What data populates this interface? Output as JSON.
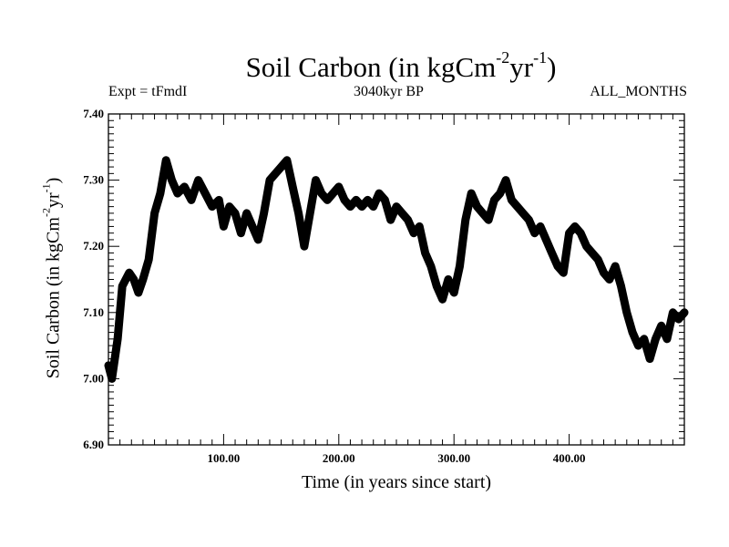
{
  "chart_data": {
    "type": "line",
    "title": "Soil Carbon (in kgCm",
    "title_sup1": "-2",
    "title_mid": "yr",
    "title_sup2": "-1",
    "title_end": ")",
    "left_subtitle": "Expt = tFmdI",
    "center_subtitle": "3040kyr BP",
    "right_subtitle": "ALL_MONTHS",
    "xlabel": "Time (in years since start)",
    "ylabel_parts": [
      "Soil Carbon (in kgCm",
      "-2",
      "yr",
      "-1",
      ")"
    ],
    "xlim": [
      0,
      500
    ],
    "ylim": [
      6.9,
      7.4
    ],
    "xticks": [
      100,
      200,
      300,
      400
    ],
    "xtick_labels": [
      "100.00",
      "200.00",
      "300.00",
      "400.00"
    ],
    "yticks": [
      6.9,
      7.0,
      7.1,
      7.2,
      7.3,
      7.4
    ],
    "ytick_labels": [
      "6.90",
      "7.00",
      "7.10",
      "7.20",
      "7.30",
      "7.40"
    ],
    "line_color": "#000000",
    "series": [
      {
        "name": "Soil Carbon",
        "x": [
          0,
          3,
          8,
          12,
          18,
          22,
          26,
          30,
          35,
          40,
          45,
          50,
          55,
          60,
          66,
          72,
          78,
          84,
          90,
          96,
          100,
          105,
          110,
          115,
          120,
          125,
          130,
          135,
          140,
          145,
          150,
          155,
          160,
          165,
          170,
          175,
          180,
          185,
          190,
          195,
          200,
          205,
          210,
          215,
          220,
          225,
          230,
          235,
          240,
          245,
          250,
          255,
          260,
          265,
          270,
          275,
          280,
          285,
          290,
          295,
          300,
          305,
          310,
          315,
          320,
          325,
          330,
          335,
          340,
          345,
          350,
          355,
          360,
          365,
          370,
          375,
          380,
          385,
          390,
          395,
          400,
          405,
          410,
          415,
          420,
          425,
          430,
          435,
          440,
          445,
          450,
          455,
          460,
          465,
          470,
          475,
          480,
          485,
          490,
          495,
          500
        ],
        "values": [
          7.02,
          7.0,
          7.06,
          7.14,
          7.16,
          7.15,
          7.13,
          7.15,
          7.18,
          7.25,
          7.28,
          7.33,
          7.3,
          7.28,
          7.29,
          7.27,
          7.3,
          7.28,
          7.26,
          7.27,
          7.23,
          7.26,
          7.25,
          7.22,
          7.25,
          7.23,
          7.21,
          7.25,
          7.3,
          7.31,
          7.32,
          7.33,
          7.29,
          7.25,
          7.2,
          7.25,
          7.3,
          7.28,
          7.27,
          7.28,
          7.29,
          7.27,
          7.26,
          7.27,
          7.26,
          7.27,
          7.26,
          7.28,
          7.27,
          7.24,
          7.26,
          7.25,
          7.24,
          7.22,
          7.23,
          7.19,
          7.17,
          7.14,
          7.12,
          7.15,
          7.13,
          7.17,
          7.24,
          7.28,
          7.26,
          7.25,
          7.24,
          7.27,
          7.28,
          7.3,
          7.27,
          7.26,
          7.25,
          7.24,
          7.22,
          7.23,
          7.21,
          7.19,
          7.17,
          7.16,
          7.22,
          7.23,
          7.22,
          7.2,
          7.19,
          7.18,
          7.16,
          7.15,
          7.17,
          7.14,
          7.1,
          7.07,
          7.05,
          7.06,
          7.03,
          7.06,
          7.08,
          7.06,
          7.1,
          7.09,
          7.1
        ]
      }
    ]
  }
}
